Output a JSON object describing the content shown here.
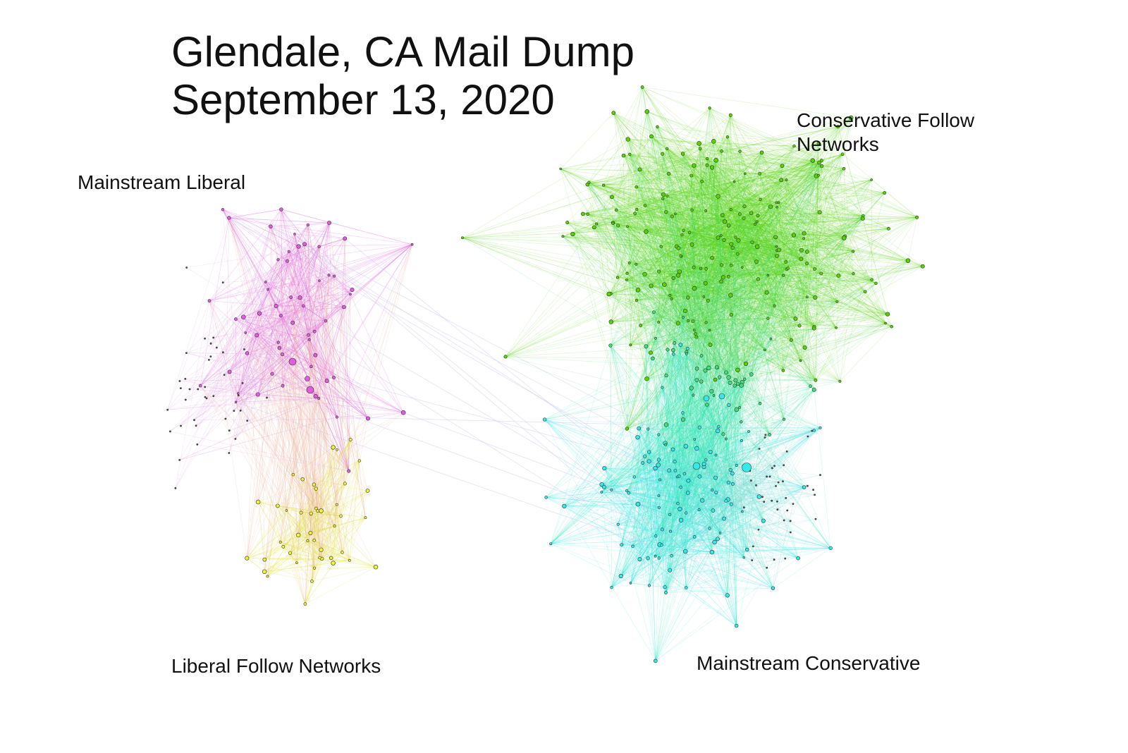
{
  "title": {
    "line1": "Glendale, CA Mail Dump",
    "line2": "September 13, 2020"
  },
  "labels": {
    "mainstream_liberal": "Mainstream Liberal",
    "liberal_follow": "Liberal Follow Networks",
    "conservative_follow_line1": "Conservative Follow",
    "conservative_follow_line2": "Networks",
    "mainstream_conservative": "Mainstream Conservative"
  },
  "colors": {
    "mainstream_liberal": "#e25ce0",
    "liberal_follow": "#eef23a",
    "conservative_follow": "#55d400",
    "mainstream_conservative": "#33eaea",
    "bridge": "#c9c3ee"
  }
}
